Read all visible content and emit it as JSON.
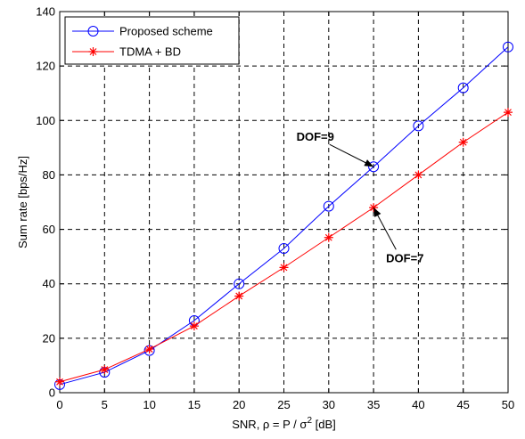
{
  "chart_data": {
    "type": "line",
    "x": [
      0,
      5,
      10,
      15,
      20,
      25,
      30,
      35,
      40,
      45,
      50
    ],
    "series": [
      {
        "name": "Proposed scheme",
        "color": "#0000ff",
        "marker": "circle",
        "values": [
          3,
          7.5,
          15.5,
          26.5,
          40,
          53,
          68.5,
          83,
          98,
          112,
          127
        ]
      },
      {
        "name": "TDMA + BD",
        "color": "#ff0000",
        "marker": "star",
        "values": [
          4,
          8.5,
          16,
          24.5,
          35.5,
          46,
          57,
          68,
          80,
          92,
          103
        ]
      }
    ],
    "xlim": [
      0,
      50
    ],
    "ylim": [
      0,
      140
    ],
    "xticks": [
      0,
      5,
      10,
      15,
      20,
      25,
      30,
      35,
      40,
      45,
      50
    ],
    "yticks": [
      0,
      20,
      40,
      60,
      80,
      100,
      120,
      140
    ],
    "xlabel_main": "SNR, ρ = P / σ",
    "xlabel_sup": "2",
    "xlabel_tail": " [dB]",
    "ylabel": "Sum rate [bps/Hz]",
    "grid": true,
    "legend_position": "top-left",
    "annotations": [
      {
        "text": "DOF=9",
        "point": [
          35,
          83
        ],
        "text_at": [
          28.5,
          92.5
        ]
      },
      {
        "text": "DOF=7",
        "point": [
          35,
          68
        ],
        "text_at": [
          38.5,
          48
        ]
      }
    ]
  }
}
